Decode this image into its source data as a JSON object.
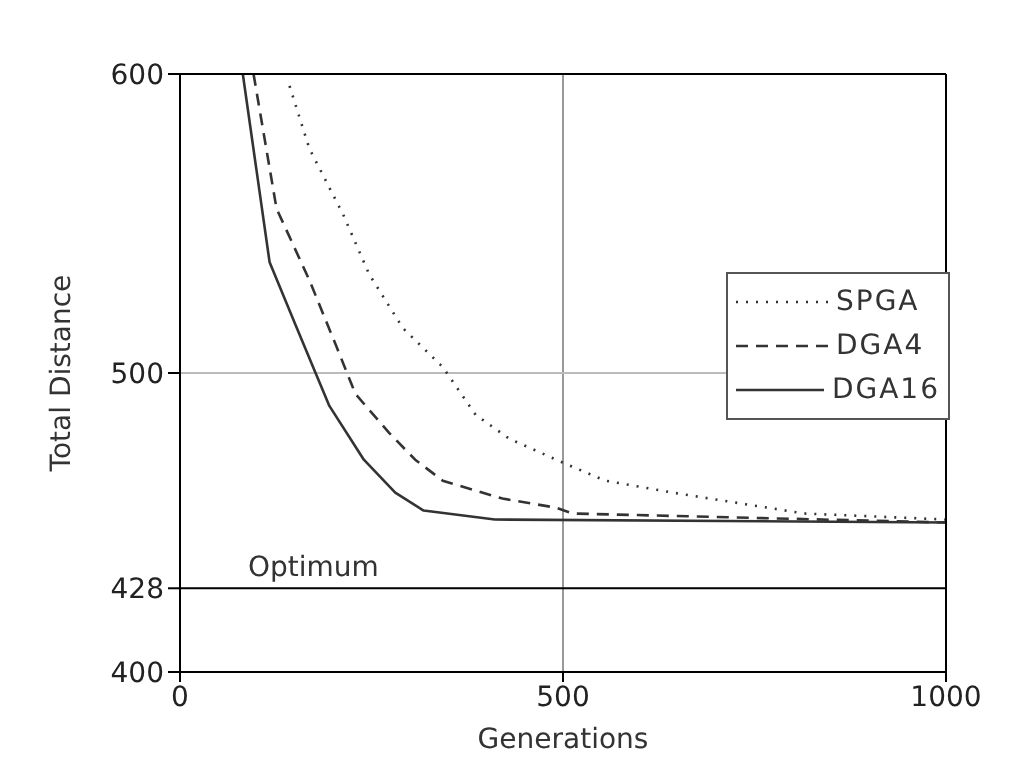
{
  "chart_data": {
    "type": "line",
    "xlabel": "Generations",
    "ylabel": "Total Distance",
    "xlim": [
      0,
      1000
    ],
    "xticks": [
      0,
      500,
      1000
    ],
    "ylim": [
      400,
      600
    ],
    "yticks": [
      400,
      428,
      500,
      600
    ],
    "legend": "right",
    "grid": false,
    "ref_lines": [
      {
        "axis": "x",
        "value": 500,
        "color": "#999999"
      },
      {
        "axis": "y",
        "value": 500,
        "color": "#bbbbbb"
      },
      {
        "axis": "y",
        "value": 428,
        "label": "Optimum",
        "color": "#000000"
      }
    ],
    "series": [
      {
        "name": "SPGA",
        "color": "#333333",
        "line_style": "dotted",
        "x": [
          143,
          169,
          213,
          247,
          291,
          343,
          386,
          430,
          500,
          555,
          643,
          815,
          1000
        ],
        "values": [
          596,
          575,
          553,
          533,
          515,
          502,
          486,
          478,
          470,
          464,
          460,
          453,
          451
        ]
      },
      {
        "name": "DGA4",
        "color": "#333333",
        "line_style": "dashed",
        "x": [
          96,
          126,
          169,
          204,
          229,
          273,
          307,
          343,
          421,
          490,
          513,
          1000
        ],
        "values": [
          600,
          555,
          531,
          509,
          493,
          480,
          471,
          464,
          458,
          455,
          453,
          450
        ]
      },
      {
        "name": "DGA16",
        "color": "#333333",
        "line_style": "solid",
        "x": [
          82,
          117,
          151,
          177,
          195,
          240,
          281,
          318,
          411,
          1000
        ],
        "values": [
          600,
          537,
          516,
          500,
          489,
          471,
          460,
          454,
          451,
          450
        ]
      }
    ]
  }
}
